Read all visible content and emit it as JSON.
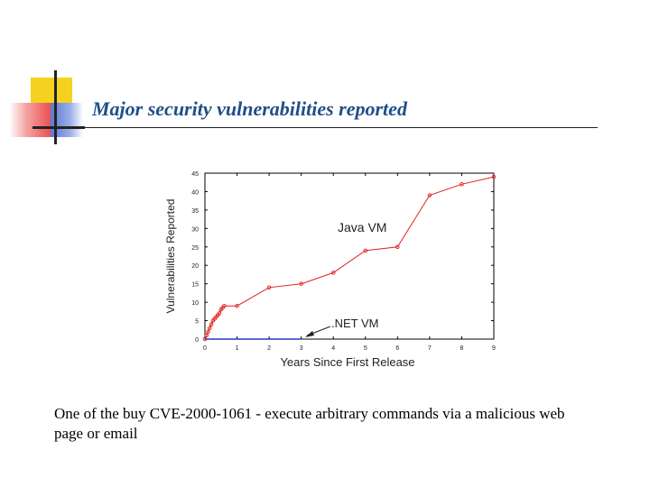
{
  "slide": {
    "title": "Major security vulnerabilities reported",
    "caption": "One of the buy CVE-2000-1061 - execute arbitrary commands via a malicious web page or email"
  },
  "colors": {
    "title": "#1f4e89",
    "java_series": "#e02020",
    "net_series": "#1f3cc8"
  },
  "chart_data": {
    "type": "line",
    "xlabel": "Years Since First Release",
    "ylabel": "Vulnerabilities Reported",
    "xlim": [
      0,
      9
    ],
    "ylim": [
      0,
      45
    ],
    "x_ticks": [
      0,
      1,
      2,
      3,
      4,
      5,
      6,
      7,
      8,
      9
    ],
    "y_ticks": [
      0,
      5,
      10,
      15,
      20,
      25,
      30,
      35,
      40,
      45
    ],
    "grid": false,
    "series": [
      {
        "name": "Java VM",
        "x": [
          0,
          0.05,
          0.1,
          0.15,
          0.2,
          0.25,
          0.3,
          0.35,
          0.4,
          0.45,
          0.5,
          0.55,
          0.6,
          1,
          2,
          3,
          4,
          5,
          6,
          7,
          8,
          9
        ],
        "y": [
          0,
          1,
          2,
          3,
          4,
          5,
          5.5,
          6,
          6.5,
          7,
          8,
          8.5,
          9,
          9,
          14,
          15,
          18,
          24,
          25,
          39,
          42,
          44
        ]
      },
      {
        "name": ".NET VM",
        "x": [
          0,
          3
        ],
        "y": [
          0,
          0
        ]
      }
    ],
    "annotations": [
      {
        "text": "Java VM"
      },
      {
        "text": ".NET VM"
      }
    ]
  }
}
